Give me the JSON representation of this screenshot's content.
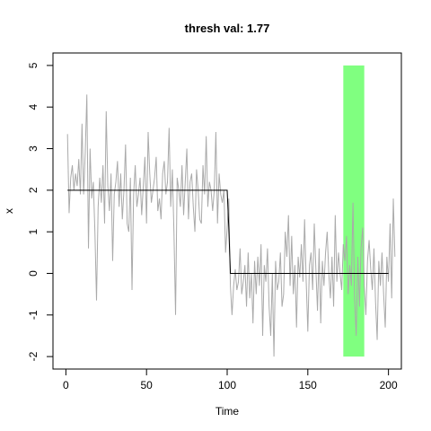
{
  "chart_data": {
    "type": "line",
    "title": "thresh val: 1.77",
    "xlabel": "Time",
    "ylabel": "x",
    "xlim": [
      -8,
      208
    ],
    "ylim": [
      -2.3,
      5.3
    ],
    "xticks": [
      0,
      50,
      100,
      150,
      200
    ],
    "yticks": [
      -2,
      -1,
      0,
      1,
      2,
      3,
      4,
      5
    ],
    "grid": false,
    "highlight_rect": {
      "x0": 172,
      "x1": 185,
      "y0": -2,
      "y1": 5,
      "color": "#80ff80"
    },
    "series": [
      {
        "color": "#aaaaaa",
        "x_start": 1,
        "values": [
          3.35,
          1.45,
          2.3,
          2.6,
          2.0,
          2.4,
          2.1,
          2.75,
          1.9,
          3.6,
          1.9,
          2.9,
          4.3,
          0.6,
          3.0,
          1.8,
          2.2,
          1.0,
          -0.65,
          1.6,
          2.3,
          1.7,
          2.6,
          1.2,
          3.9,
          2.1,
          1.5,
          2.4,
          0.3,
          1.9,
          2.2,
          2.7,
          1.6,
          2.4,
          1.3,
          2.0,
          3.1,
          1.2,
          1.0,
          2.3,
          -0.4,
          1.9,
          2.6,
          1.6,
          1.9,
          2.3,
          1.4,
          2.1,
          2.8,
          1.2,
          3.4,
          2.4,
          1.7,
          2.0,
          2.3,
          2.8,
          1.5,
          1.8,
          1.3,
          2.4,
          2.7,
          1.9,
          2.2,
          3.5,
          1.6,
          2.5,
          1.0,
          -1.0,
          2.3,
          2.0,
          1.6,
          2.6,
          1.4,
          2.2,
          3.0,
          1.3,
          2.2,
          2.4,
          1.6,
          1.0,
          2.5,
          2.0,
          1.3,
          1.2,
          2.6,
          1.9,
          3.3,
          1.6,
          2.2,
          2.0,
          1.5,
          2.0,
          3.4,
          1.2,
          2.4,
          1.9,
          1.7,
          2.0,
          0.5,
          1.1,
          1.8,
          -0.3,
          -1.0,
          -0.3,
          0.1,
          -0.4,
          -0.2,
          0.6,
          -0.5,
          -0.2,
          0.2,
          -0.8,
          0.5,
          -0.6,
          0.0,
          -1.2,
          0.3,
          -0.5,
          0.4,
          -0.3,
          0.7,
          -1.5,
          0.2,
          -0.2,
          0.6,
          -0.8,
          -1.5,
          0.0,
          -2.0,
          0.3,
          -0.4,
          -0.2,
          0.5,
          -0.8,
          -0.5,
          1.0,
          0.4,
          1.4,
          -0.3,
          0.9,
          -0.5,
          0.2,
          -1.3,
          0.4,
          -0.1,
          0.7,
          -0.2,
          1.3,
          -0.2,
          -1.4,
          0.2,
          0.5,
          -0.4,
          1.2,
          0.1,
          -0.9,
          0.6,
          -1.2,
          0.3,
          -0.3,
          0.5,
          1.0,
          0.0,
          -0.6,
          0.4,
          -0.8,
          1.4,
          -0.2,
          0.5,
          0.0,
          -0.4,
          0.7,
          0.3,
          0.9,
          -0.5,
          0.2,
          -0.3,
          1.7,
          -0.6,
          -1.5,
          0.4,
          -0.8,
          0.6,
          1.1,
          -0.3,
          -1.0,
          0.3,
          0.8,
          0.1,
          -0.4,
          0.6,
          -0.7,
          -1.6,
          0.3,
          -0.3,
          0.5,
          -0.5,
          -1.3,
          0.4,
          -0.2,
          1.2,
          -0.6,
          1.8,
          0.4
        ]
      },
      {
        "color": "#000000",
        "x": [
          1,
          100,
          101,
          102,
          200
        ],
        "values": [
          2.0,
          2.0,
          1.1,
          0.0,
          0.0
        ]
      }
    ]
  }
}
